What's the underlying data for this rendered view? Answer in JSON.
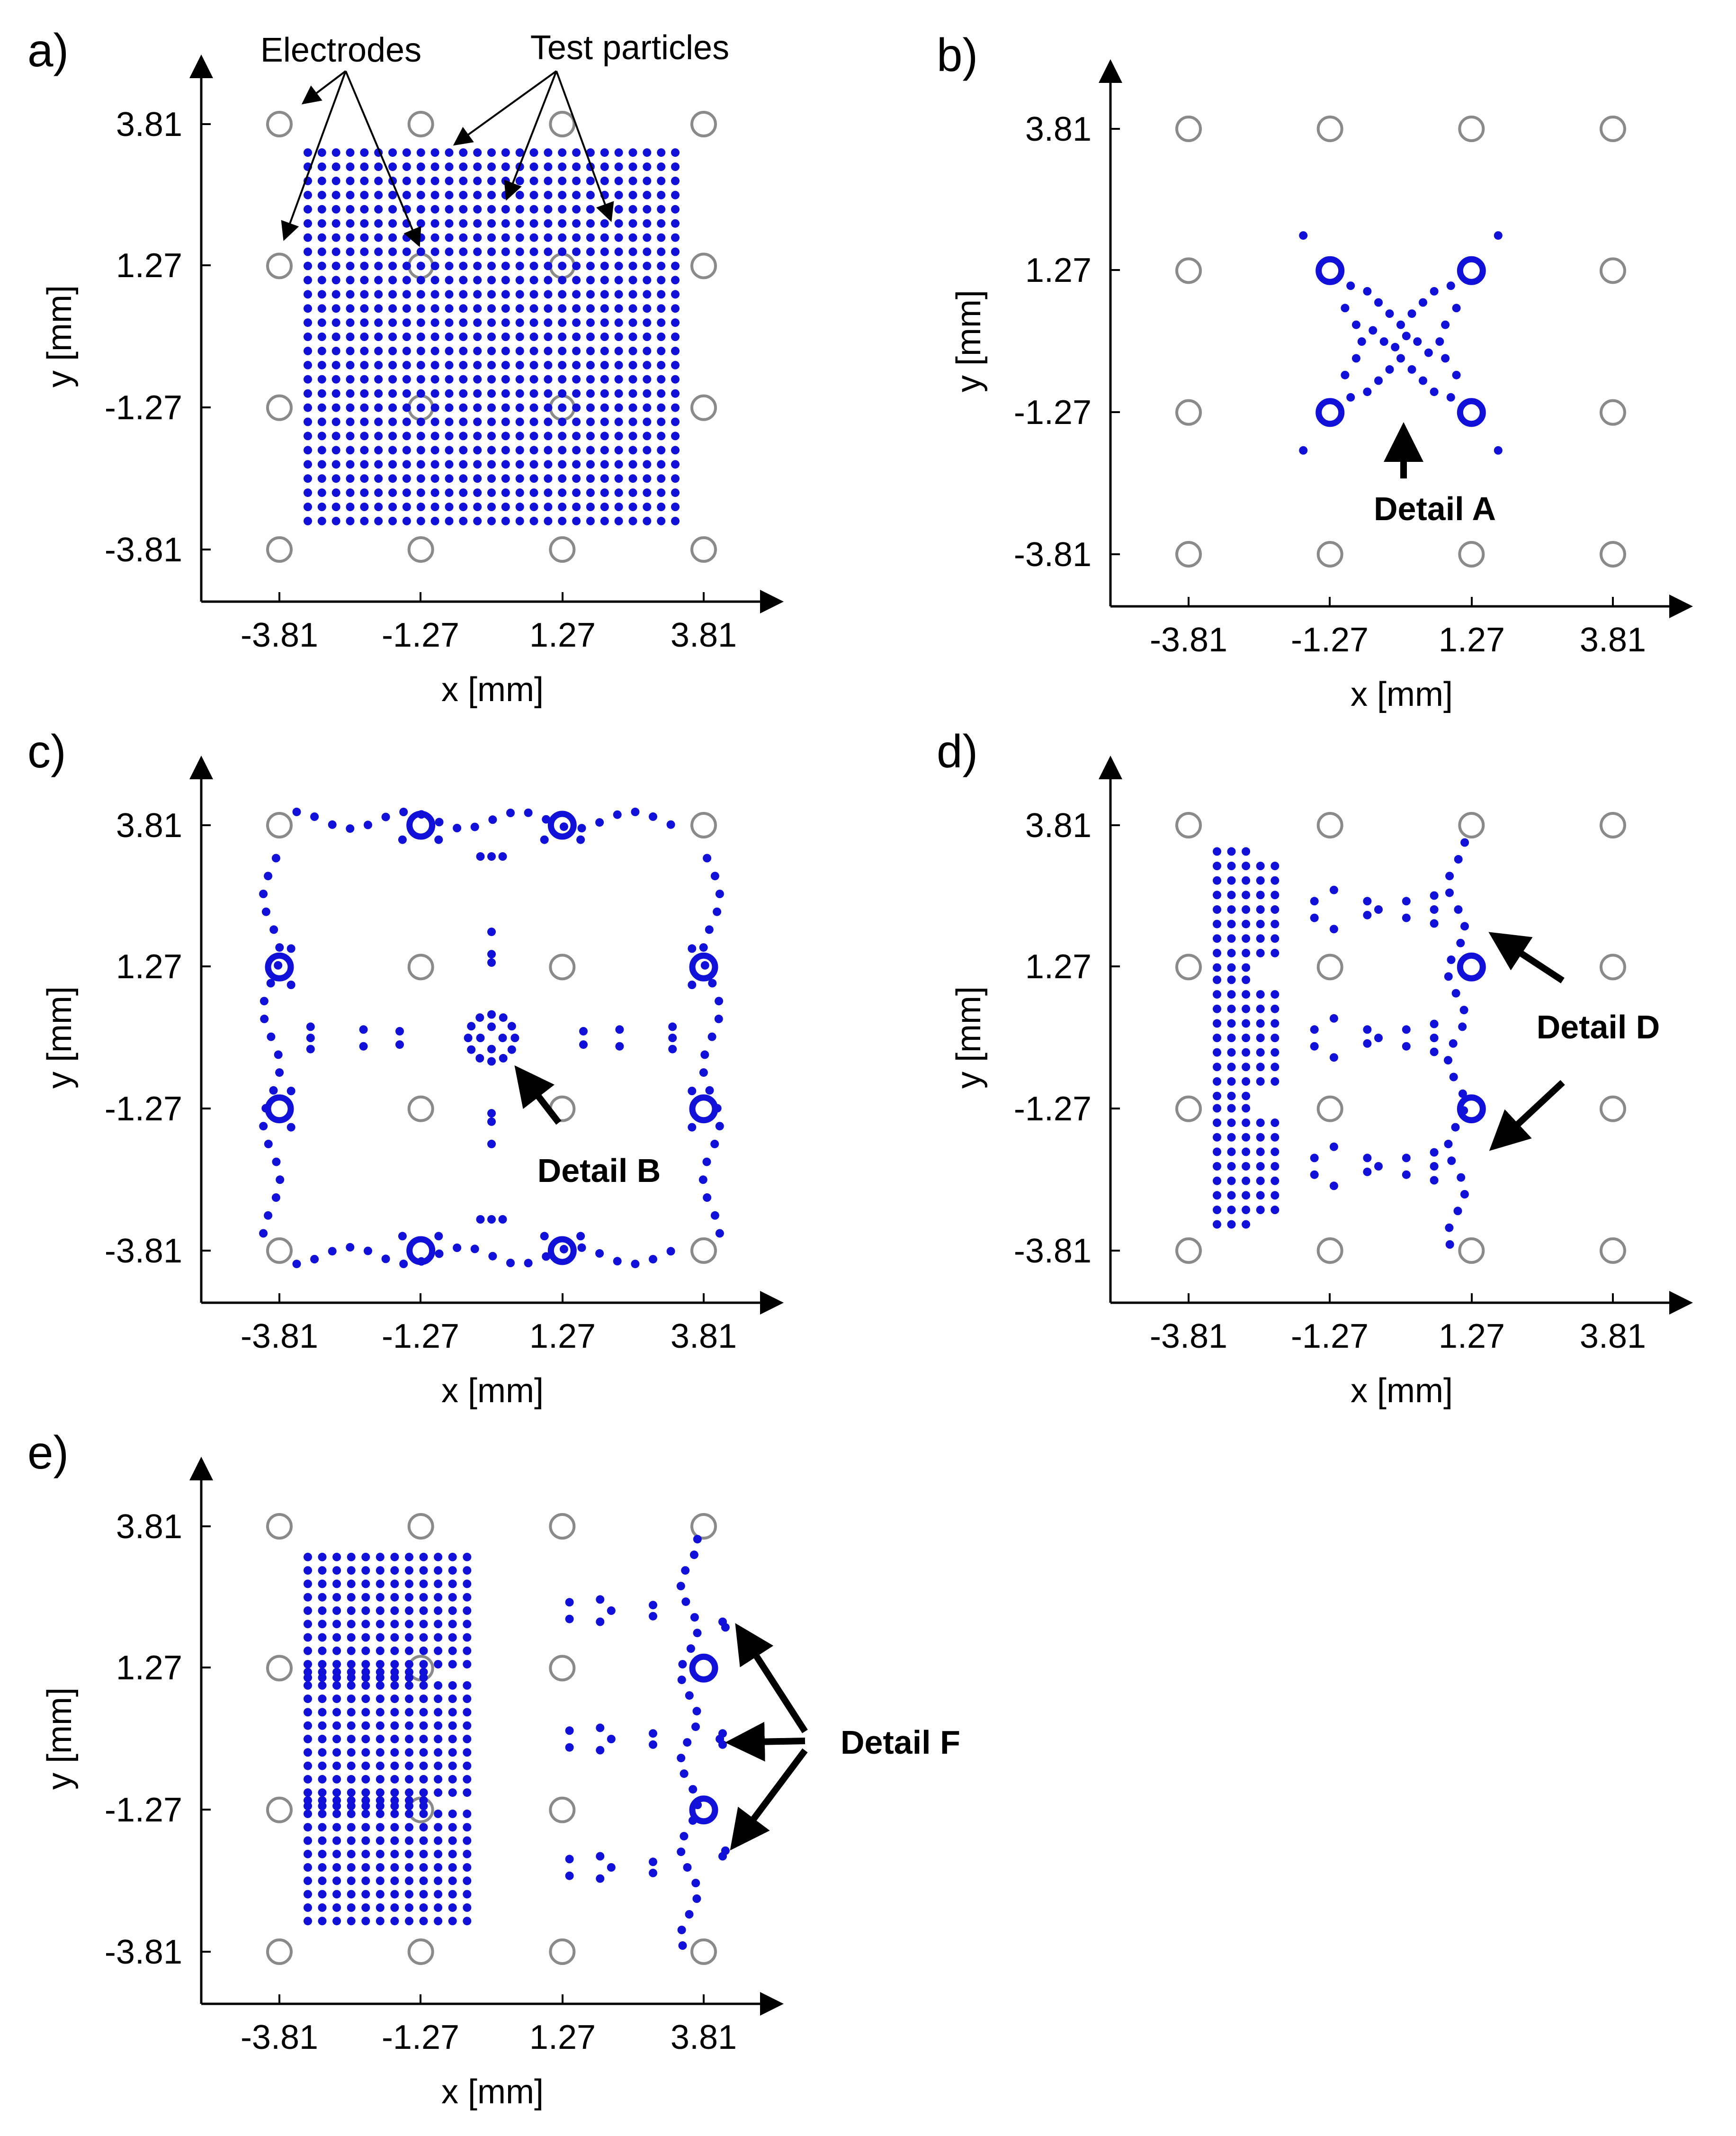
{
  "chart_data": [
    {
      "type": "scatter",
      "panel_label": "a)",
      "xlabel": "x [mm]",
      "ylabel": "y [mm]",
      "xticks": [
        "-3.81",
        "-1.27",
        "1.27",
        "3.81"
      ],
      "yticks": [
        "3.81",
        "1.27",
        "-1.27",
        "-3.81"
      ],
      "xlim": [
        -5.2,
        5.2
      ],
      "ylim": [
        -4.8,
        5.0
      ],
      "electrodes": {
        "x": [
          -3.81,
          -1.27,
          1.27,
          3.81
        ],
        "y": [
          3.81,
          1.27,
          -1.27,
          -3.81
        ]
      },
      "particles": {
        "description_grid": {
          "x_min": -3.3,
          "x_max": 3.3,
          "y_min": -3.3,
          "y_max": 3.3,
          "count_per_side": 27
        }
      },
      "annotations": [
        {
          "text": "Electrodes"
        },
        {
          "text": "Test particles"
        }
      ]
    },
    {
      "type": "scatter",
      "panel_label": "b)",
      "xlabel": "x [mm]",
      "ylabel": "y [mm]",
      "xticks": [
        "-3.81",
        "-1.27",
        "1.27",
        "3.81"
      ],
      "yticks": [
        "3.81",
        "1.27",
        "-1.27",
        "-3.81"
      ],
      "electrodes": {
        "x": [
          -3.81,
          -1.27,
          1.27,
          3.81
        ],
        "y": [
          3.81,
          1.27,
          -1.27,
          -3.81
        ]
      },
      "particle_points": [
        [
          -0.6,
          0.9
        ],
        [
          -0.4,
          0.7
        ],
        [
          -0.2,
          0.5
        ],
        [
          0.0,
          0.3
        ],
        [
          0.2,
          0.5
        ],
        [
          0.4,
          0.7
        ],
        [
          0.6,
          0.9
        ],
        [
          -0.6,
          -0.9
        ],
        [
          -0.4,
          -0.7
        ],
        [
          -0.2,
          -0.5
        ],
        [
          0.0,
          -0.3
        ],
        [
          0.2,
          -0.5
        ],
        [
          0.4,
          -0.7
        ],
        [
          0.6,
          -0.9
        ],
        [
          -0.5,
          0.2
        ],
        [
          -0.3,
          0.0
        ],
        [
          -0.1,
          -0.1
        ],
        [
          0.1,
          0.1
        ],
        [
          0.3,
          0.0
        ],
        [
          0.5,
          -0.2
        ],
        [
          -0.8,
          0.3
        ],
        [
          0.8,
          0.3
        ],
        [
          -0.8,
          -0.3
        ],
        [
          0.8,
          -0.3
        ],
        [
          -0.9,
          1.0
        ],
        [
          0.9,
          1.0
        ],
        [
          -0.9,
          -1.0
        ],
        [
          0.9,
          -1.0
        ],
        [
          -1.0,
          0.6
        ],
        [
          1.0,
          0.6
        ],
        [
          -1.0,
          -0.6
        ],
        [
          1.0,
          -0.6
        ],
        [
          -0.7,
          0.0
        ],
        [
          0.7,
          0.0
        ],
        [
          -1.75,
          1.9
        ],
        [
          1.75,
          1.9
        ],
        [
          -1.75,
          -1.95
        ],
        [
          1.75,
          -1.95
        ]
      ],
      "ring_particles": [
        [
          -1.27,
          1.27
        ],
        [
          1.27,
          1.27
        ],
        [
          -1.27,
          -1.27
        ],
        [
          1.27,
          -1.27
        ]
      ],
      "annotations": [
        {
          "text": "Detail A"
        }
      ]
    },
    {
      "type": "scatter",
      "panel_label": "c)",
      "xlabel": "x [mm]",
      "ylabel": "y [mm]",
      "xticks": [
        "-3.81",
        "-1.27",
        "1.27",
        "3.81"
      ],
      "yticks": [
        "3.81",
        "1.27",
        "-1.27",
        "-3.81"
      ],
      "electrodes": {
        "x": [
          -3.81,
          -1.27,
          1.27,
          3.81
        ],
        "y": [
          3.81,
          1.27,
          -1.27,
          -3.81
        ]
      },
      "ring_particles": [
        [
          -1.27,
          3.81
        ],
        [
          1.27,
          3.81
        ],
        [
          -1.27,
          -3.81
        ],
        [
          1.27,
          -3.81
        ],
        [
          -3.81,
          1.27
        ],
        [
          -3.81,
          -1.27
        ],
        [
          3.81,
          1.27
        ],
        [
          3.81,
          -1.27
        ]
      ],
      "annotations": [
        {
          "text": "Detail B"
        }
      ]
    },
    {
      "type": "scatter",
      "panel_label": "d)",
      "xlabel": "x [mm]",
      "ylabel": "y [mm]",
      "xticks": [
        "-3.81",
        "-1.27",
        "1.27",
        "3.81"
      ],
      "yticks": [
        "3.81",
        "1.27",
        "-1.27",
        "-3.81"
      ],
      "electrodes": {
        "x": [
          -3.81,
          -1.27,
          1.27,
          3.81
        ],
        "y": [
          3.81,
          1.27,
          -1.27,
          -3.81
        ]
      },
      "ring_particles": [
        [
          1.27,
          1.27
        ],
        [
          1.27,
          -1.27
        ]
      ],
      "annotations": [
        {
          "text": "Detail D"
        }
      ]
    },
    {
      "type": "scatter",
      "panel_label": "e)",
      "xlabel": "x [mm]",
      "ylabel": "y [mm]",
      "xticks": [
        "-3.81",
        "-1.27",
        "1.27",
        "3.81"
      ],
      "yticks": [
        "3.81",
        "1.27",
        "-1.27",
        "-3.81"
      ],
      "electrodes": {
        "x": [
          -3.81,
          -1.27,
          1.27,
          3.81
        ],
        "y": [
          3.81,
          1.27,
          -1.27,
          -3.81
        ]
      },
      "ring_particles": [
        [
          3.81,
          1.27
        ],
        [
          3.81,
          -1.27
        ]
      ],
      "annotations": [
        {
          "text": "Detail F"
        }
      ]
    }
  ],
  "colors": {
    "particle": "#1010d8",
    "electrode": "#8a8a8a",
    "axis": "#000000"
  }
}
